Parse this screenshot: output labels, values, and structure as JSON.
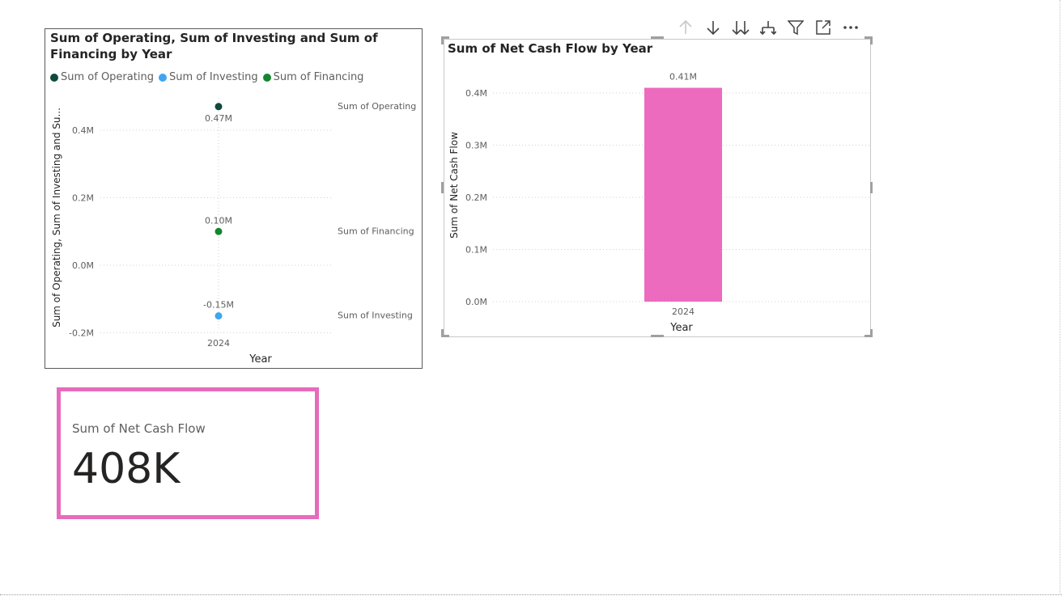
{
  "colors": {
    "operating": "#0f4a3c",
    "investing": "#41a5ee",
    "financing": "#13862f",
    "net_cash_flow_bar": "#ec6bbe",
    "card_border": "#e66bbd"
  },
  "header_icons": [
    "arrow-up-icon",
    "arrow-down-icon",
    "double-arrow-down-icon",
    "expand-hierarchy-icon",
    "filter-icon",
    "focus-mode-icon",
    "more-options-icon"
  ],
  "scatter_visual": {
    "title": "Sum of Operating, Sum of Investing and Sum of Financing by Year",
    "legend": [
      "Sum of Operating",
      "Sum of Investing",
      "Sum of Financing"
    ],
    "ylabel": "Sum of Operating, Sum of Investing and Su...",
    "xlabel": "Year"
  },
  "bar_visual": {
    "title": "Sum of Net Cash Flow by Year"
  },
  "card": {
    "label": "Sum of Net Cash Flow",
    "value": "408K"
  },
  "chart_data": [
    {
      "type": "scatter",
      "title": "Sum of Operating, Sum of Investing and Sum of Financing by Year",
      "xlabel": "Year",
      "ylabel": "Sum of Operating, Sum of Investing and Su...",
      "categories": [
        "2024"
      ],
      "ylim": [
        -0.2,
        0.47
      ],
      "yticks": [
        -0.2,
        0.0,
        0.2,
        0.4
      ],
      "ytick_labels": [
        "-0.2M",
        "0.0M",
        "0.2M",
        "0.4M"
      ],
      "grid": true,
      "legend_position": "top-left",
      "series": [
        {
          "name": "Sum of Operating",
          "values": [
            0.47
          ],
          "labels": [
            "0.47M"
          ],
          "color": "#0f4a3c"
        },
        {
          "name": "Sum of Investing",
          "values": [
            -0.15
          ],
          "labels": [
            "-0.15M"
          ],
          "color": "#41a5ee"
        },
        {
          "name": "Sum of Financing",
          "values": [
            0.1
          ],
          "labels": [
            "0.10M"
          ],
          "color": "#13862f"
        }
      ]
    },
    {
      "type": "bar",
      "title": "Sum of Net Cash Flow by Year",
      "xlabel": "Year",
      "ylabel": "Sum of Net Cash Flow",
      "categories": [
        "2024"
      ],
      "values": [
        0.41
      ],
      "value_labels": [
        "0.41M"
      ],
      "ylim": [
        0,
        0.41
      ],
      "yticks": [
        0.0,
        0.1,
        0.2,
        0.3,
        0.4
      ],
      "ytick_labels": [
        "0.0M",
        "0.1M",
        "0.2M",
        "0.3M",
        "0.4M"
      ],
      "grid": true,
      "color": "#ec6bbe"
    }
  ]
}
